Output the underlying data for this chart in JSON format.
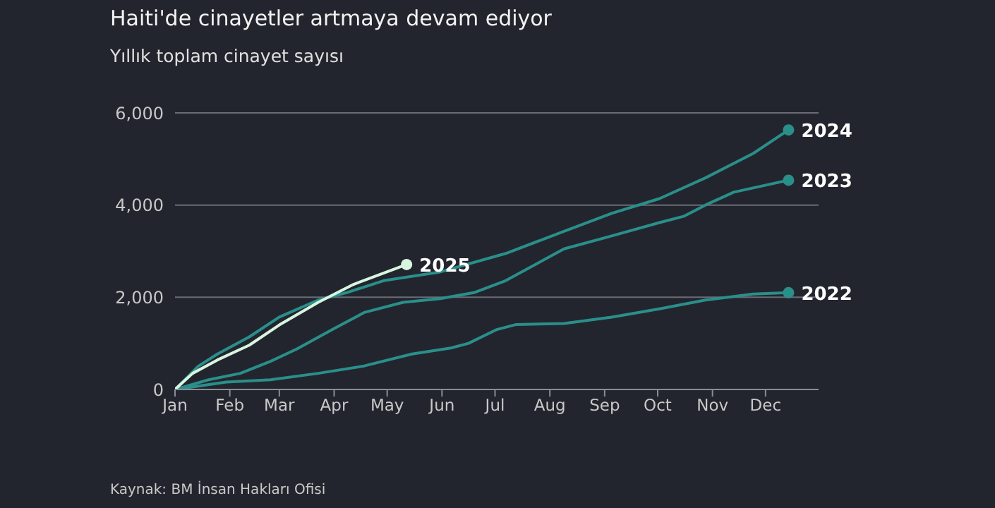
{
  "chart_data": {
    "type": "line",
    "title": "Haiti'de cinayetler artmaya devam ediyor",
    "subtitle": "Yıllık toplam cinayet sayısı",
    "annotations": [
      "Kaynak: BM İnsan Hakları Ofisi"
    ],
    "xlim": [
      "--01-01",
      "--12-31"
    ],
    "xticks": [
      {
        "value": "--01-01",
        "label": "Jan"
      },
      {
        "value": "--02-01",
        "label": "Feb"
      },
      {
        "value": "--03-01",
        "label": "Mar"
      },
      {
        "value": "--04-01",
        "label": "Apr"
      },
      {
        "value": "--05-01",
        "label": "May"
      },
      {
        "value": "--06-01",
        "label": "Jun"
      },
      {
        "value": "--07-01",
        "label": "Jul"
      },
      {
        "value": "--08-01",
        "label": "Aug"
      },
      {
        "value": "--09-01",
        "label": "Sep"
      },
      {
        "value": "--10-01",
        "label": "Oct"
      },
      {
        "value": "--11-01",
        "label": "Nov"
      },
      {
        "value": "--12-01",
        "label": "Dec"
      }
    ],
    "ylim": [
      0,
      6000
    ],
    "yticks": [
      {
        "value": 0,
        "label": "0"
      },
      {
        "value": 2000,
        "label": "2,000"
      },
      {
        "value": 4000,
        "label": "4,000"
      },
      {
        "value": 6000,
        "label": "6,000"
      }
    ],
    "grid": "y",
    "legend": false,
    "series": [
      {
        "name": "2022",
        "color": "#2a8f8a",
        "x": [
          "--01-01",
          "--01-30",
          "--02-24",
          "--03-23",
          "--04-18",
          "--05-15",
          "--06-06",
          "--06-16",
          "--07-02",
          "--07-13",
          "--08-09",
          "--09-05",
          "--10-02",
          "--10-28",
          "--11-24",
          "--12-14"
        ],
        "values": [
          0,
          160,
          210,
          350,
          510,
          770,
          900,
          1000,
          1300,
          1410,
          1430,
          1570,
          1750,
          1940,
          2070,
          2100
        ]
      },
      {
        "name": "2023",
        "color": "#2a8f8a",
        "x": [
          "--01-01",
          "--01-20",
          "--02-07",
          "--02-24",
          "--03-11",
          "--03-31",
          "--04-18",
          "--05-10",
          "--05-31",
          "--06-19",
          "--07-07",
          "--08-09",
          "--09-05",
          "--10-02",
          "--10-16",
          "--10-28",
          "--11-13",
          "--12-14"
        ],
        "values": [
          0,
          210,
          350,
          610,
          880,
          1300,
          1670,
          1890,
          1970,
          2100,
          2360,
          3050,
          3330,
          3620,
          3760,
          4000,
          4280,
          4540
        ]
      },
      {
        "name": "2024",
        "color": "#2a8f8a",
        "x": [
          "--01-01",
          "--01-14",
          "--01-25",
          "--02-12",
          "--03-01",
          "--03-23",
          "--04-08",
          "--04-29",
          "--05-31",
          "--07-07",
          "--08-09",
          "--09-05",
          "--10-02",
          "--10-28",
          "--11-24",
          "--12-14"
        ],
        "values": [
          0,
          500,
          770,
          1140,
          1570,
          1940,
          2100,
          2360,
          2550,
          2950,
          3430,
          3820,
          4140,
          4590,
          5120,
          5630
        ]
      },
      {
        "name": "2025",
        "color": "#d8f5e0",
        "x": [
          "--01-01",
          "--01-11",
          "--01-25",
          "--02-12",
          "--03-01",
          "--03-23",
          "--04-12",
          "--05-12"
        ],
        "values": [
          0,
          350,
          640,
          960,
          1400,
          1890,
          2280,
          2710
        ]
      }
    ]
  }
}
